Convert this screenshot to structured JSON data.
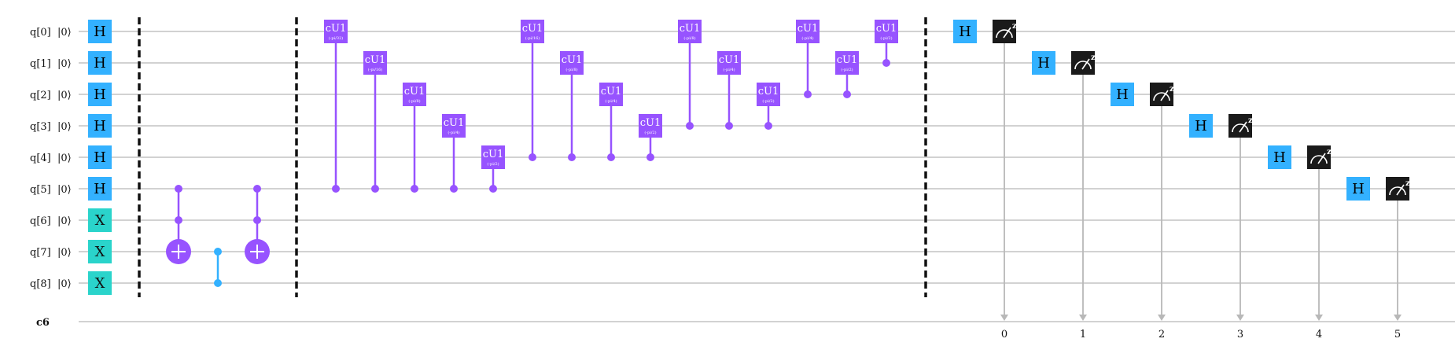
{
  "qubits": [
    {
      "label": "q[0]",
      "init": "|0⟩"
    },
    {
      "label": "q[1]",
      "init": "|0⟩"
    },
    {
      "label": "q[2]",
      "init": "|0⟩"
    },
    {
      "label": "q[3]",
      "init": "|0⟩"
    },
    {
      "label": "q[4]",
      "init": "|0⟩"
    },
    {
      "label": "q[5]",
      "init": "|0⟩"
    },
    {
      "label": "q[6]",
      "init": "|0⟩"
    },
    {
      "label": "q[7]",
      "init": "|0⟩"
    },
    {
      "label": "q[8]",
      "init": "|0⟩"
    }
  ],
  "classical_register": {
    "label": "c6"
  },
  "colors": {
    "h_gate": "#33b1ff",
    "x_gate": "#2ad4cb",
    "cu1_gate": "#9753ff",
    "cz": "#33b1ff",
    "measure": "#1a1a1a",
    "wire": "#b8b8b8",
    "barrier": "#111111"
  },
  "gates": {
    "init_h": [
      {
        "label": "H",
        "qubit": 0
      },
      {
        "label": "H",
        "qubit": 1
      },
      {
        "label": "H",
        "qubit": 2
      },
      {
        "label": "H",
        "qubit": 3
      },
      {
        "label": "H",
        "qubit": 4
      },
      {
        "label": "H",
        "qubit": 5
      }
    ],
    "init_x": [
      {
        "label": "X",
        "qubit": 6
      },
      {
        "label": "X",
        "qubit": 7
      },
      {
        "label": "X",
        "qubit": 8
      }
    ],
    "ccx": [
      {
        "controls": [
          5,
          6
        ],
        "target": 7
      },
      {
        "controls": [
          5,
          6
        ],
        "target": 7
      }
    ],
    "cz": [
      {
        "qubits": [
          7,
          8
        ]
      }
    ],
    "cu1": [
      {
        "label": "cU1",
        "param": "(-pi/32)",
        "target": 0,
        "control": 5
      },
      {
        "label": "cU1",
        "param": "(-pi/16)",
        "target": 1,
        "control": 5
      },
      {
        "label": "cU1",
        "param": "(-pi/8)",
        "target": 2,
        "control": 5
      },
      {
        "label": "cU1",
        "param": "(-pi/4)",
        "target": 3,
        "control": 5
      },
      {
        "label": "cU1",
        "param": "(-pi/2)",
        "target": 4,
        "control": 5
      },
      {
        "label": "cU1",
        "param": "(-pi/16)",
        "target": 0,
        "control": 4
      },
      {
        "label": "cU1",
        "param": "(-pi/8)",
        "target": 1,
        "control": 4
      },
      {
        "label": "cU1",
        "param": "(-pi/4)",
        "target": 2,
        "control": 4
      },
      {
        "label": "cU1",
        "param": "(-pi/2)",
        "target": 3,
        "control": 4
      },
      {
        "label": "cU1",
        "param": "(-pi/8)",
        "target": 0,
        "control": 3
      },
      {
        "label": "cU1",
        "param": "(-pi/4)",
        "target": 1,
        "control": 3
      },
      {
        "label": "cU1",
        "param": "(-pi/2)",
        "target": 2,
        "control": 3
      },
      {
        "label": "cU1",
        "param": "(-pi/4)",
        "target": 0,
        "control": 2
      },
      {
        "label": "cU1",
        "param": "(-pi/2)",
        "target": 1,
        "control": 2
      },
      {
        "label": "cU1",
        "param": "(-pi/2)",
        "target": 0,
        "control": 1
      }
    ],
    "final_h": [
      {
        "label": "H",
        "qubit": 0
      },
      {
        "label": "H",
        "qubit": 1
      },
      {
        "label": "H",
        "qubit": 2
      },
      {
        "label": "H",
        "qubit": 3
      },
      {
        "label": "H",
        "qubit": 4
      },
      {
        "label": "H",
        "qubit": 5
      }
    ],
    "measure": [
      {
        "qubit": 0,
        "cbit": "0",
        "basis": "z"
      },
      {
        "qubit": 1,
        "cbit": "1",
        "basis": "z"
      },
      {
        "qubit": 2,
        "cbit": "2",
        "basis": "z"
      },
      {
        "qubit": 3,
        "cbit": "3",
        "basis": "z"
      },
      {
        "qubit": 4,
        "cbit": "4",
        "basis": "z"
      },
      {
        "qubit": 5,
        "cbit": "5",
        "basis": "z"
      }
    ]
  }
}
